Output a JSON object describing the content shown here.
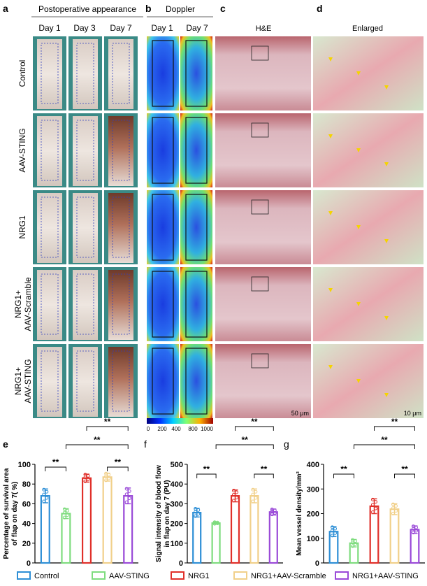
{
  "panels": {
    "a": "a",
    "b": "b",
    "c": "c",
    "d": "d",
    "e": "e",
    "f": "f",
    "g": "g"
  },
  "headers": {
    "postop": "Postoperative appearance",
    "doppler": "Doppler",
    "he": "H&E",
    "enlarged": "Enlarged",
    "days_a": [
      "Day 1",
      "Day 3",
      "Day 7"
    ],
    "days_b": [
      "Day 1",
      "Day 7"
    ]
  },
  "rows": [
    "Control",
    "AAV-STING",
    "NRG1",
    "NRG1+|AAV-Scramble",
    "NRG1+|AAV-STING"
  ],
  "colorbar": {
    "ticks": [
      "0",
      "200",
      "400",
      "800",
      "1000"
    ]
  },
  "scalebars": {
    "he": "50 μm",
    "enlarged": "10 μm"
  },
  "colors": {
    "Control": "#2e8fd6",
    "AAV-STING": "#7fdc7f",
    "NRG1": "#e0302a",
    "NRG1+AAV-Scramble": "#f1d08a",
    "NRG1+AAV-STING": "#9a4ad8"
  },
  "legend": [
    "Control",
    "AAV-STING",
    "NRG1",
    "NRG1+AAV-Scramble",
    "NRG1+AAV-STING"
  ],
  "chart_data": [
    {
      "type": "bar",
      "panel": "e",
      "ylabel": "Percentage of survival area|of flap on day 7( %)",
      "ylim": [
        0,
        100
      ],
      "yticks": [
        0,
        20,
        40,
        60,
        80,
        100
      ],
      "categories": [
        "Control",
        "AAV-STING",
        "NRG1",
        "NRG1+AAV-Scramble",
        "NRG1+AAV-STING"
      ],
      "values": [
        68,
        50,
        86,
        87,
        68
      ],
      "sd": [
        7,
        5,
        4,
        4,
        8
      ],
      "significance": [
        {
          "pair": [
            0,
            1
          ],
          "label": "**"
        },
        {
          "pair": [
            1,
            4
          ],
          "label": "**"
        },
        {
          "pair": [
            2,
            4
          ],
          "label": "**"
        },
        {
          "pair": [
            3,
            4
          ],
          "label": "**"
        }
      ]
    },
    {
      "type": "bar",
      "panel": "f",
      "ylabel": "Signal intensity of blood flow|in flap on day 7 (PU)",
      "ylim": [
        0,
        500
      ],
      "yticks": [
        0,
        100,
        200,
        300,
        400,
        500
      ],
      "categories": [
        "Control",
        "AAV-STING",
        "NRG1",
        "NRG1+AAV-Scramble",
        "NRG1+AAV-STING"
      ],
      "values": [
        255,
        202,
        340,
        340,
        258
      ],
      "sd": [
        22,
        5,
        30,
        35,
        15
      ],
      "significance": [
        {
          "pair": [
            0,
            1
          ],
          "label": "**"
        },
        {
          "pair": [
            1,
            4
          ],
          "label": "**"
        },
        {
          "pair": [
            2,
            4
          ],
          "label": "**"
        },
        {
          "pair": [
            3,
            4
          ],
          "label": "**"
        }
      ]
    },
    {
      "type": "bar",
      "panel": "g",
      "ylabel": "Mean vessel density/mm²",
      "ylim": [
        0,
        400
      ],
      "yticks": [
        0,
        100,
        200,
        300,
        400
      ],
      "categories": [
        "Control",
        "AAV-STING",
        "NRG1",
        "NRG1+AAV-Scramble",
        "NRG1+AAV-STING"
      ],
      "values": [
        127,
        80,
        230,
        218,
        135
      ],
      "sd": [
        20,
        15,
        30,
        22,
        15
      ],
      "significance": [
        {
          "pair": [
            0,
            1
          ],
          "label": "**"
        },
        {
          "pair": [
            1,
            4
          ],
          "label": "**"
        },
        {
          "pair": [
            2,
            4
          ],
          "label": "**"
        },
        {
          "pair": [
            3,
            4
          ],
          "label": "**"
        }
      ]
    }
  ]
}
